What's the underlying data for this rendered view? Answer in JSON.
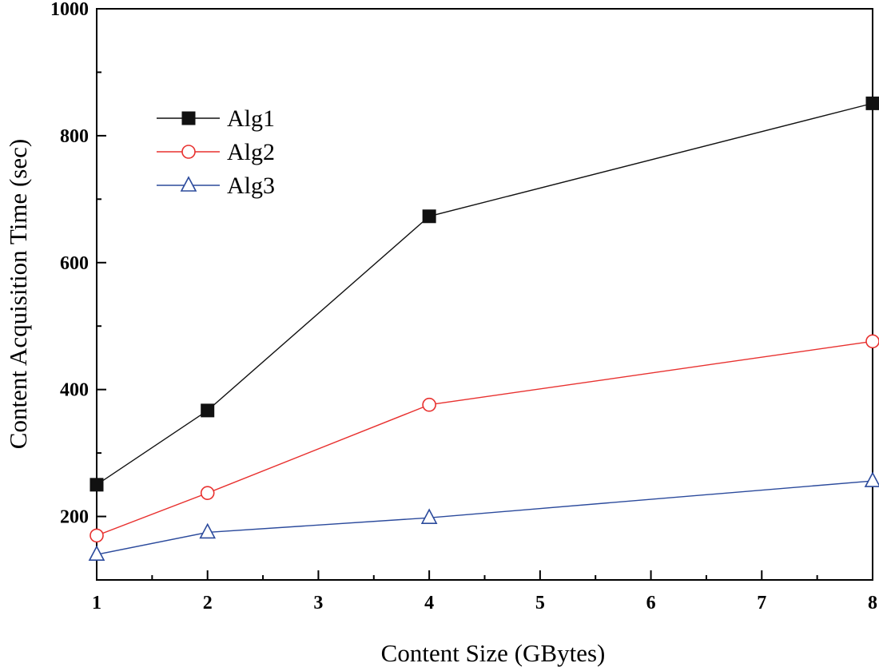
{
  "chart_data": {
    "type": "line",
    "xlabel": "Content Size (GBytes)",
    "ylabel": "Content Acquisition Time (sec)",
    "xlim": [
      1,
      8
    ],
    "ylim": [
      100,
      1000
    ],
    "x_ticks": [
      1,
      2,
      3,
      4,
      5,
      6,
      7,
      8
    ],
    "y_ticks": [
      200,
      400,
      600,
      800,
      1000
    ],
    "legend_position": "upper-left",
    "grid": false,
    "x": [
      1,
      2,
      4,
      8
    ],
    "series": [
      {
        "name": "Alg1",
        "values": [
          250,
          367,
          673,
          851
        ],
        "color": "#111111",
        "marker": "filled-square"
      },
      {
        "name": "Alg2",
        "values": [
          170,
          237,
          376,
          476
        ],
        "color": "#e8312f",
        "marker": "open-circle"
      },
      {
        "name": "Alg3",
        "values": [
          140,
          175,
          198,
          256
        ],
        "color": "#2b4a9c",
        "marker": "open-triangle"
      }
    ]
  }
}
